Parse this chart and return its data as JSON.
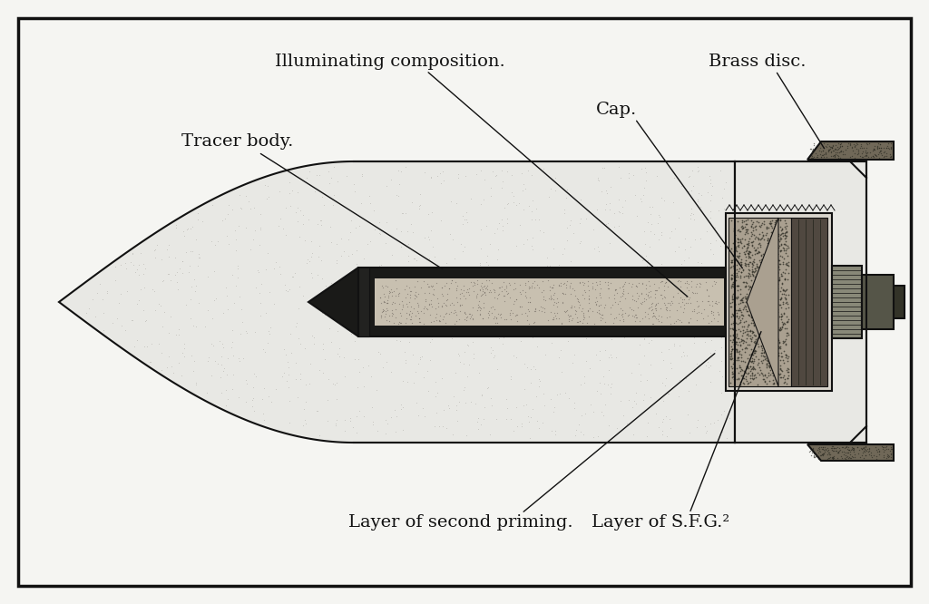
{
  "bg_color": "#f5f5f2",
  "border_color": "#111111",
  "labels": {
    "tracer_body": "Tracer body.",
    "illuminating": "Illuminating composition.",
    "brass_disc": "Brass disc.",
    "cap": "Cap.",
    "second_priming": "Layer of second priming.",
    "sfg": "Layer of S.F.G.²"
  },
  "font_family": "serif",
  "font_size": 14,
  "line_color": "#111111",
  "shell_fill": "#e8e8e4",
  "shell_stipple": "#d0cec8",
  "tracer_outer": "#1a1a18",
  "tracer_inner_light": "#c8c0b0",
  "tracer_inner_mid": "#a09888",
  "cap_box_fill": "#d8d4cc",
  "illum_fill": "#aaa090",
  "sfg_fill": "#504840",
  "brass_fill": "#706858",
  "plug_fill": "#606058",
  "plug2_fill": "#383830"
}
